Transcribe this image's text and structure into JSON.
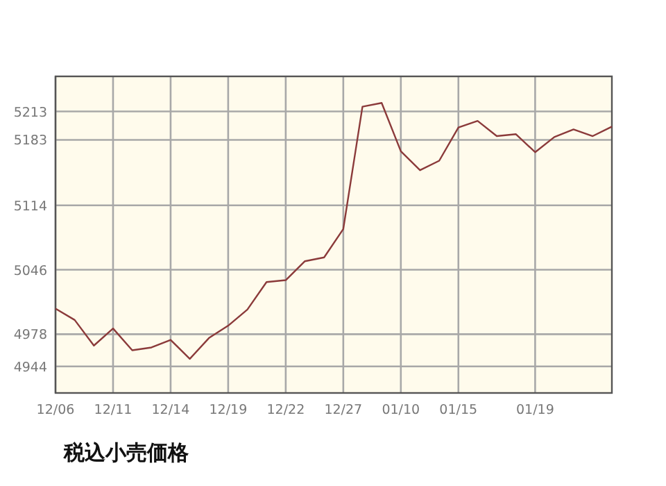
{
  "chart_data": {
    "type": "line",
    "title": "税込小売価格",
    "categories": [
      "12/06",
      null,
      null,
      "12/11",
      null,
      null,
      "12/14",
      null,
      null,
      "12/19",
      null,
      null,
      "12/22",
      null,
      null,
      "12/27",
      null,
      null,
      "01/10",
      null,
      null,
      "01/15",
      null,
      null,
      null,
      "01/19",
      null,
      null,
      null,
      null
    ],
    "values": [
      5005,
      4993,
      4966,
      4984,
      4961,
      4964,
      4972,
      4952,
      4974,
      4987,
      5004,
      5033,
      5035,
      5055,
      5059,
      5089,
      5218,
      5222,
      5171,
      5151,
      5161,
      5196,
      5203,
      5187,
      5189,
      5170,
      5186,
      5194,
      5187,
      5197
    ],
    "color": "#8b3a3a",
    "ylim": [
      4916,
      5250
    ],
    "yticks": [
      4944,
      4978,
      5046,
      5114,
      5183,
      5213
    ],
    "grid": true
  }
}
